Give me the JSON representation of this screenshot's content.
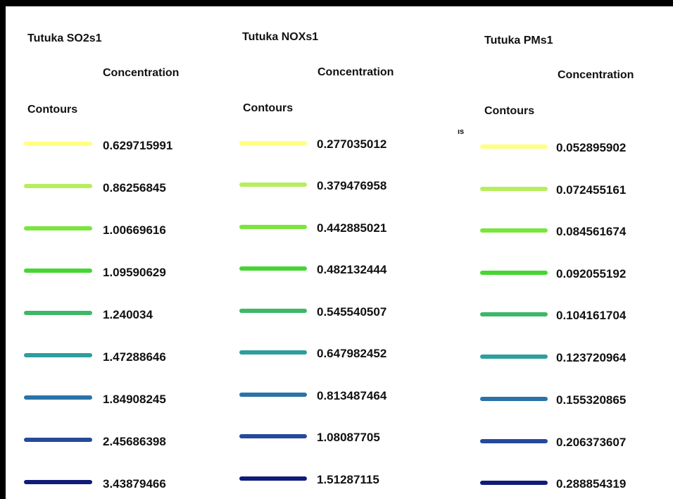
{
  "legends": [
    {
      "title": "Tutuka SO2s1",
      "concentration_label": "Concentration",
      "contours_label": "Contours",
      "items": [
        {
          "value": "0.629715991",
          "color": "#ffff80"
        },
        {
          "value": "0.86256845",
          "color": "#b7ee5c"
        },
        {
          "value": "1.00669616",
          "color": "#7ae53c"
        },
        {
          "value": "1.09590629",
          "color": "#45d631"
        },
        {
          "value": "1.240034",
          "color": "#3cb866"
        },
        {
          "value": "1.47288646",
          "color": "#2e9e9e"
        },
        {
          "value": "1.84908245",
          "color": "#2a72a8"
        },
        {
          "value": "2.45686398",
          "color": "#264a9a"
        },
        {
          "value": "3.43879466",
          "color": "#111b78"
        }
      ]
    },
    {
      "title": "Tutuka NOXs1",
      "concentration_label": "Concentration",
      "contours_label": "Contours",
      "items": [
        {
          "value": "0.277035012",
          "color": "#ffff80"
        },
        {
          "value": "0.379476958",
          "color": "#b7ee5c"
        },
        {
          "value": "0.442885021",
          "color": "#7ae53c"
        },
        {
          "value": "0.482132444",
          "color": "#45d631"
        },
        {
          "value": "0.545540507",
          "color": "#3cb866"
        },
        {
          "value": "0.647982452",
          "color": "#2e9e9e"
        },
        {
          "value": "0.813487464",
          "color": "#2a72a8"
        },
        {
          "value": "1.08087705",
          "color": "#264a9a"
        },
        {
          "value": "1.51287115",
          "color": "#111b78"
        }
      ]
    },
    {
      "title": "Tutuka PMs1",
      "concentration_label": "Concentration",
      "contours_label": "Contours",
      "items": [
        {
          "value": "0.052895902",
          "color": "#ffff80"
        },
        {
          "value": "0.072455161",
          "color": "#b7ee5c"
        },
        {
          "value": "0.084561674",
          "color": "#7ae53c"
        },
        {
          "value": "0.092055192",
          "color": "#45d631"
        },
        {
          "value": "0.104161704",
          "color": "#3cb866"
        },
        {
          "value": "0.123720964",
          "color": "#2e9e9e"
        },
        {
          "value": "0.155320865",
          "color": "#2a72a8"
        },
        {
          "value": "0.206373607",
          "color": "#264a9a"
        },
        {
          "value": "0.288854319",
          "color": "#111b78"
        }
      ]
    }
  ],
  "stray_text": "ıs",
  "frame_color": "#000000",
  "background_color": "#ffffff"
}
